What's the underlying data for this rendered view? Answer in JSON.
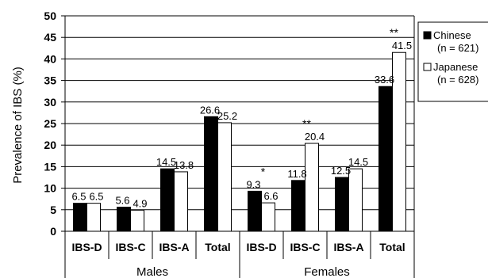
{
  "chart_data": {
    "type": "bar",
    "ylabel": "Prevalence of IBS (%)",
    "ylim": [
      0,
      50
    ],
    "yticks": [
      "0",
      "5",
      "10",
      "15",
      "20",
      "25",
      "30",
      "35",
      "40",
      "45",
      "50"
    ],
    "grid": true,
    "legend_position": "right",
    "groups": [
      {
        "label": "Males",
        "categories": [
          "IBS-D",
          "IBS-C",
          "IBS-A",
          "Total"
        ]
      },
      {
        "label": "Females",
        "categories": [
          "IBS-D",
          "IBS-C",
          "IBS-A",
          "Total"
        ]
      }
    ],
    "categories": [
      "IBS-D",
      "IBS-C",
      "IBS-A",
      "Total",
      "IBS-D",
      "IBS-C",
      "IBS-A",
      "Total"
    ],
    "series": [
      {
        "name": "Chinese",
        "legend_line1": "Chinese",
        "legend_line2": "(n = 621)",
        "color": "#000000",
        "values": [
          6.5,
          5.6,
          14.5,
          26.6,
          9.3,
          11.8,
          12.5,
          33.6
        ],
        "labels": [
          "6.5",
          "5.6",
          "14.5",
          "26.6",
          "9.3",
          "11.8",
          "12.5",
          "33.6"
        ]
      },
      {
        "name": "Japanese",
        "legend_line1": "Japanese",
        "legend_line2": "(n = 628)",
        "color": "#ffffff",
        "values": [
          6.5,
          4.9,
          13.8,
          25.2,
          6.6,
          20.4,
          14.5,
          41.5
        ],
        "labels": [
          "6.5",
          "4.9",
          "13.8",
          "25.2",
          "6.6",
          "20.4",
          "14.5",
          "41.5"
        ]
      }
    ],
    "annotations": [
      {
        "category_index": 4,
        "text": "*"
      },
      {
        "category_index": 5,
        "text": "**"
      },
      {
        "category_index": 7,
        "text": "**"
      }
    ]
  }
}
